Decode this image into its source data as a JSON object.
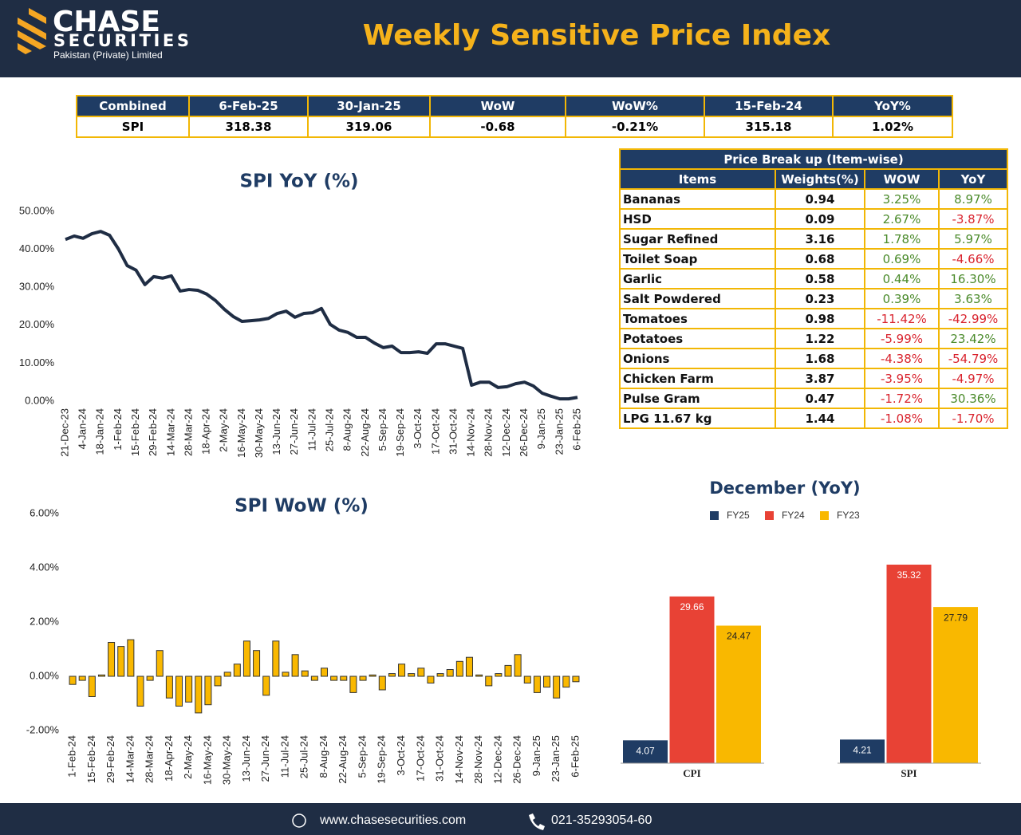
{
  "header": {
    "logo_name": "CHASE",
    "logo_sub": "SECURITIES",
    "logo_tagline": "Pakistan (Private) Limited",
    "title": "Weekly Sensitive Price Index"
  },
  "summary_table": {
    "columns": [
      "Combined",
      "6-Feb-25",
      "30-Jan-25",
      "WoW",
      "WoW%",
      "15-Feb-24",
      "YoY%"
    ],
    "rows": [
      [
        "SPI",
        "318.38",
        "319.06",
        "-0.68",
        "-0.21%",
        "315.18",
        "1.02%"
      ]
    ]
  },
  "price_table": {
    "title": "Price Break up (Item-wise)",
    "columns": [
      "Items",
      "Weights(%)",
      "WOW",
      "YoY"
    ],
    "rows": [
      [
        "Bananas",
        "0.94",
        "3.25%",
        "8.97%"
      ],
      [
        "HSD",
        "0.09",
        "2.67%",
        "-3.87%"
      ],
      [
        "Sugar Refined",
        "3.16",
        "1.78%",
        "5.97%"
      ],
      [
        "Toilet Soap",
        "0.68",
        "0.69%",
        "-4.66%"
      ],
      [
        "Garlic",
        "0.58",
        "0.44%",
        "16.30%"
      ],
      [
        "Salt Powdered",
        "0.23",
        "0.39%",
        "3.63%"
      ],
      [
        "Tomatoes",
        "0.98",
        "-11.42%",
        "-42.99%"
      ],
      [
        "Potatoes",
        "1.22",
        "-5.99%",
        "23.42%"
      ],
      [
        "Onions",
        "1.68",
        "-4.38%",
        "-54.79%"
      ],
      [
        "Chicken Farm",
        "3.87",
        "-3.95%",
        "-4.97%"
      ],
      [
        "Pulse Gram",
        "0.47",
        "-1.72%",
        "30.36%"
      ],
      [
        "LPG 11.67 kg",
        "1.44",
        "-1.08%",
        "-1.70%"
      ]
    ]
  },
  "chart_data": [
    {
      "type": "line",
      "title": "SPI YoY (%)",
      "color": "#1f2d44",
      "categories": [
        "21-Dec-23",
        null,
        "4-Jan-24",
        null,
        "18-Jan-24",
        null,
        "1-Feb-24",
        null,
        "15-Feb-24",
        null,
        "29-Feb-24",
        null,
        "14-Mar-24",
        null,
        "28-Mar-24",
        null,
        "18-Apr-24",
        null,
        "2-May-24",
        null,
        "16-May-24",
        null,
        "30-May-24",
        null,
        "13-Jun-24",
        null,
        "27-Jun-24",
        null,
        "11-Jul-24",
        null,
        "25-Jul-24",
        null,
        "8-Aug-24",
        null,
        "22-Aug-24",
        null,
        "5-Sep-24",
        null,
        "19-Sep-24",
        null,
        "3-Oct-24",
        null,
        "17-Oct-24",
        null,
        "31-Oct-24",
        null,
        "14-Nov-24",
        null,
        "28-Nov-24",
        null,
        "12-Dec-24",
        null,
        "26-Dec-24",
        null,
        "9-Jan-25",
        null,
        "23-Jan-25",
        null,
        "6-Feb-25"
      ],
      "values": [
        42.6,
        43.5,
        42.9,
        44.1,
        44.7,
        43.7,
        40.1,
        35.7,
        34.5,
        30.7,
        32.8,
        32.4,
        33.0,
        29.0,
        29.4,
        29.2,
        28.2,
        26.5,
        24.2,
        22.3,
        21.0,
        21.2,
        21.4,
        21.8,
        23.1,
        23.7,
        22.1,
        23.1,
        23.3,
        24.4,
        20.2,
        18.7,
        18.1,
        16.8,
        16.8,
        15.3,
        14.1,
        14.5,
        12.8,
        12.8,
        13.0,
        12.6,
        15.1,
        15.1,
        14.5,
        13.9,
        4.2,
        5.0,
        5.0,
        3.6,
        3.8,
        4.6,
        5.0,
        4.0,
        2.1,
        1.3,
        0.6,
        0.6,
        1.0
      ],
      "ylim": [
        0,
        50
      ],
      "yticks": [
        {
          "value": 0,
          "label": "0.00%"
        },
        {
          "value": 10,
          "label": "10.00%"
        },
        {
          "value": 20,
          "label": "20.00%"
        },
        {
          "value": 30,
          "label": "30.00%"
        },
        {
          "value": 40,
          "label": "40.00%"
        },
        {
          "value": 50,
          "label": "50.00%"
        }
      ]
    },
    {
      "type": "bar",
      "title": "SPI WoW (%)",
      "color": "#f9b800",
      "categories": [
        "1-Feb-24",
        null,
        "15-Feb-24",
        null,
        "29-Feb-24",
        null,
        "14-Mar-24",
        null,
        "28-Mar-24",
        null,
        "18-Apr-24",
        null,
        "2-May-24",
        null,
        "16-May-24",
        null,
        "30-May-24",
        null,
        "13-Jun-24",
        null,
        "27-Jun-24",
        null,
        "11-Jul-24",
        null,
        "25-Jul-24",
        null,
        "8-Aug-24",
        null,
        "22-Aug-24",
        null,
        "5-Sep-24",
        null,
        "19-Sep-24",
        null,
        "3-Oct-24",
        null,
        "17-Oct-24",
        null,
        "31-Oct-24",
        null,
        "14-Nov-24",
        null,
        "28-Nov-24",
        null,
        "12-Dec-24",
        null,
        "26-Dec-24",
        null,
        "9-Jan-25",
        null,
        "23-Jan-25",
        null,
        "6-Feb-25"
      ],
      "values": [
        -0.3,
        -0.15,
        -0.75,
        0.05,
        1.25,
        1.1,
        1.35,
        -1.1,
        -0.15,
        0.95,
        -0.8,
        -1.1,
        -0.95,
        -1.35,
        -1.05,
        -0.35,
        0.15,
        0.45,
        1.3,
        0.95,
        -0.7,
        1.3,
        0.15,
        0.8,
        0.2,
        -0.15,
        0.3,
        -0.15,
        -0.15,
        -0.6,
        -0.15,
        0.05,
        -0.5,
        0.1,
        0.45,
        0.1,
        0.3,
        -0.25,
        0.1,
        0.25,
        0.55,
        0.7,
        0.05,
        -0.35,
        0.1,
        0.4,
        0.8,
        -0.25,
        -0.6,
        -0.4,
        -0.8,
        -0.4,
        -0.2
      ],
      "ylim": [
        -2,
        6
      ],
      "yticks": [
        {
          "value": -2,
          "label": "-2.00%"
        },
        {
          "value": 0,
          "label": "0.00%"
        },
        {
          "value": 2,
          "label": "2.00%"
        },
        {
          "value": 4,
          "label": "4.00%"
        },
        {
          "value": 6,
          "label": "6.00%"
        }
      ]
    },
    {
      "type": "grouped_bar",
      "title": "December (YoY)",
      "categories": [
        "CPI",
        "SPI"
      ],
      "series": [
        {
          "name": "FY25",
          "color": "#1f3c64",
          "values": [
            4.07,
            4.21
          ]
        },
        {
          "name": "FY24",
          "color": "#e84235",
          "values": [
            29.66,
            35.32
          ]
        },
        {
          "name": "FY23",
          "color": "#f9b800",
          "values": [
            24.47,
            27.79
          ]
        }
      ]
    }
  ],
  "footer": {
    "website": "www.chasesecurities.com",
    "phone": "021-35293054-60"
  }
}
